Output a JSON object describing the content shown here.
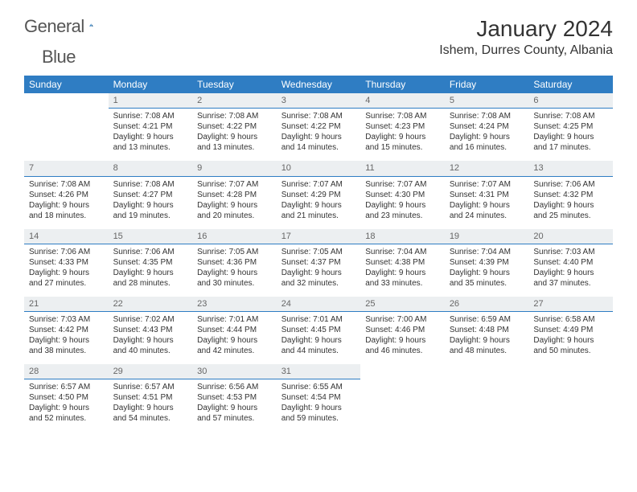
{
  "brand": {
    "word1": "General",
    "word2": "Blue"
  },
  "title": "January 2024",
  "location": "Ishem, Durres County, Albania",
  "header_bg": "#2f7dc3",
  "daynum_bg": "#eceff1",
  "weekdays": [
    "Sunday",
    "Monday",
    "Tuesday",
    "Wednesday",
    "Thursday",
    "Friday",
    "Saturday"
  ],
  "weeks": [
    [
      null,
      {
        "n": "1",
        "sr": "7:08 AM",
        "ss": "4:21 PM",
        "dl": "9 hours and 13 minutes."
      },
      {
        "n": "2",
        "sr": "7:08 AM",
        "ss": "4:22 PM",
        "dl": "9 hours and 13 minutes."
      },
      {
        "n": "3",
        "sr": "7:08 AM",
        "ss": "4:22 PM",
        "dl": "9 hours and 14 minutes."
      },
      {
        "n": "4",
        "sr": "7:08 AM",
        "ss": "4:23 PM",
        "dl": "9 hours and 15 minutes."
      },
      {
        "n": "5",
        "sr": "7:08 AM",
        "ss": "4:24 PM",
        "dl": "9 hours and 16 minutes."
      },
      {
        "n": "6",
        "sr": "7:08 AM",
        "ss": "4:25 PM",
        "dl": "9 hours and 17 minutes."
      }
    ],
    [
      {
        "n": "7",
        "sr": "7:08 AM",
        "ss": "4:26 PM",
        "dl": "9 hours and 18 minutes."
      },
      {
        "n": "8",
        "sr": "7:08 AM",
        "ss": "4:27 PM",
        "dl": "9 hours and 19 minutes."
      },
      {
        "n": "9",
        "sr": "7:07 AM",
        "ss": "4:28 PM",
        "dl": "9 hours and 20 minutes."
      },
      {
        "n": "10",
        "sr": "7:07 AM",
        "ss": "4:29 PM",
        "dl": "9 hours and 21 minutes."
      },
      {
        "n": "11",
        "sr": "7:07 AM",
        "ss": "4:30 PM",
        "dl": "9 hours and 23 minutes."
      },
      {
        "n": "12",
        "sr": "7:07 AM",
        "ss": "4:31 PM",
        "dl": "9 hours and 24 minutes."
      },
      {
        "n": "13",
        "sr": "7:06 AM",
        "ss": "4:32 PM",
        "dl": "9 hours and 25 minutes."
      }
    ],
    [
      {
        "n": "14",
        "sr": "7:06 AM",
        "ss": "4:33 PM",
        "dl": "9 hours and 27 minutes."
      },
      {
        "n": "15",
        "sr": "7:06 AM",
        "ss": "4:35 PM",
        "dl": "9 hours and 28 minutes."
      },
      {
        "n": "16",
        "sr": "7:05 AM",
        "ss": "4:36 PM",
        "dl": "9 hours and 30 minutes."
      },
      {
        "n": "17",
        "sr": "7:05 AM",
        "ss": "4:37 PM",
        "dl": "9 hours and 32 minutes."
      },
      {
        "n": "18",
        "sr": "7:04 AM",
        "ss": "4:38 PM",
        "dl": "9 hours and 33 minutes."
      },
      {
        "n": "19",
        "sr": "7:04 AM",
        "ss": "4:39 PM",
        "dl": "9 hours and 35 minutes."
      },
      {
        "n": "20",
        "sr": "7:03 AM",
        "ss": "4:40 PM",
        "dl": "9 hours and 37 minutes."
      }
    ],
    [
      {
        "n": "21",
        "sr": "7:03 AM",
        "ss": "4:42 PM",
        "dl": "9 hours and 38 minutes."
      },
      {
        "n": "22",
        "sr": "7:02 AM",
        "ss": "4:43 PM",
        "dl": "9 hours and 40 minutes."
      },
      {
        "n": "23",
        "sr": "7:01 AM",
        "ss": "4:44 PM",
        "dl": "9 hours and 42 minutes."
      },
      {
        "n": "24",
        "sr": "7:01 AM",
        "ss": "4:45 PM",
        "dl": "9 hours and 44 minutes."
      },
      {
        "n": "25",
        "sr": "7:00 AM",
        "ss": "4:46 PM",
        "dl": "9 hours and 46 minutes."
      },
      {
        "n": "26",
        "sr": "6:59 AM",
        "ss": "4:48 PM",
        "dl": "9 hours and 48 minutes."
      },
      {
        "n": "27",
        "sr": "6:58 AM",
        "ss": "4:49 PM",
        "dl": "9 hours and 50 minutes."
      }
    ],
    [
      {
        "n": "28",
        "sr": "6:57 AM",
        "ss": "4:50 PM",
        "dl": "9 hours and 52 minutes."
      },
      {
        "n": "29",
        "sr": "6:57 AM",
        "ss": "4:51 PM",
        "dl": "9 hours and 54 minutes."
      },
      {
        "n": "30",
        "sr": "6:56 AM",
        "ss": "4:53 PM",
        "dl": "9 hours and 57 minutes."
      },
      {
        "n": "31",
        "sr": "6:55 AM",
        "ss": "4:54 PM",
        "dl": "9 hours and 59 minutes."
      },
      null,
      null,
      null
    ]
  ],
  "labels": {
    "sunrise": "Sunrise:",
    "sunset": "Sunset:",
    "daylight": "Daylight:"
  }
}
